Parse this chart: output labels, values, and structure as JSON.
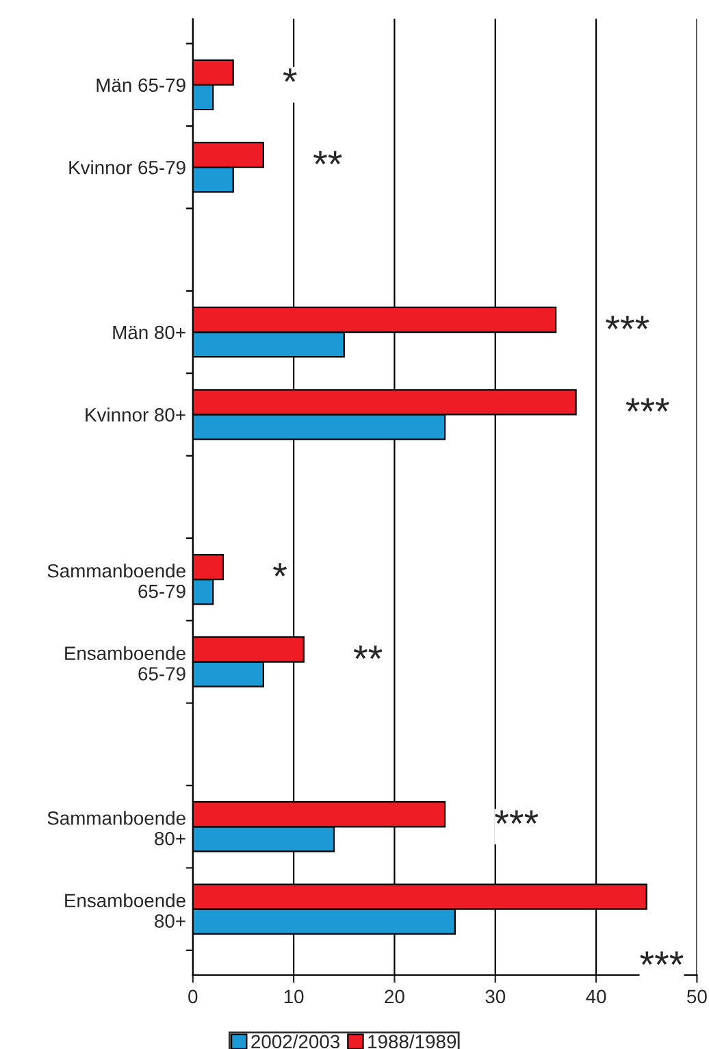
{
  "chart_data": {
    "type": "bar",
    "orientation": "horizontal",
    "categories": [
      "Män 65-79",
      "Kvinnor 65-79",
      null,
      "Män 80+",
      "Kvinnor 80+",
      null,
      "Sammanboende\n65-79",
      "Ensamboende\n65-79",
      null,
      "Sammanboende\n80+",
      "Ensamboende\n80+"
    ],
    "series": [
      {
        "name": "2002/2003",
        "color": "#1b9ad6",
        "values": [
          2,
          4,
          null,
          15,
          25,
          null,
          2,
          7,
          null,
          14,
          26
        ]
      },
      {
        "name": "1988/1989",
        "color": "#ee1c25",
        "values": [
          4,
          7,
          null,
          36,
          38,
          null,
          3,
          11,
          null,
          25,
          45
        ]
      }
    ],
    "xlim": [
      0,
      50
    ],
    "xticks": [
      0,
      10,
      20,
      30,
      40,
      50
    ],
    "grid": "x",
    "legend": "bottom",
    "annotations": [
      "*",
      "**",
      "***",
      "***",
      "*",
      "**",
      "***",
      "***"
    ]
  }
}
